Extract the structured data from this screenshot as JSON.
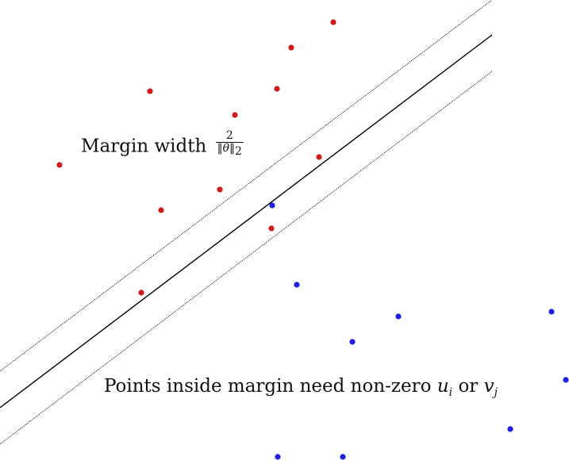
{
  "labels": {
    "margin_text": "Margin width",
    "margin_fraction_numerator": "2",
    "margin_fraction_theta": "θ",
    "margin_fraction_subscript": "2",
    "points_text": "Points inside margin need non-zero",
    "u": "u",
    "u_sub": "i",
    "or_text": "or",
    "v": "v",
    "v_sub": "j"
  },
  "colors": {
    "class_a": "#d11a1a",
    "class_b": "#1f1fe8",
    "boundary": "#000000",
    "margin_lines": "#000000"
  },
  "points": {
    "red": [
      {
        "name": "red-point-1"
      },
      {
        "name": "red-point-2"
      },
      {
        "name": "red-point-3"
      },
      {
        "name": "red-point-4"
      },
      {
        "name": "red-point-5"
      },
      {
        "name": "red-point-6"
      },
      {
        "name": "red-point-7"
      },
      {
        "name": "red-point-8"
      },
      {
        "name": "red-point-9"
      },
      {
        "name": "red-point-10"
      },
      {
        "name": "red-point-11"
      }
    ],
    "blue": [
      {
        "name": "blue-point-1"
      },
      {
        "name": "blue-point-2"
      },
      {
        "name": "blue-point-3"
      },
      {
        "name": "blue-point-4"
      },
      {
        "name": "blue-point-5"
      },
      {
        "name": "blue-point-6"
      },
      {
        "name": "blue-point-7"
      },
      {
        "name": "blue-point-8"
      },
      {
        "name": "blue-point-9"
      }
    ]
  }
}
